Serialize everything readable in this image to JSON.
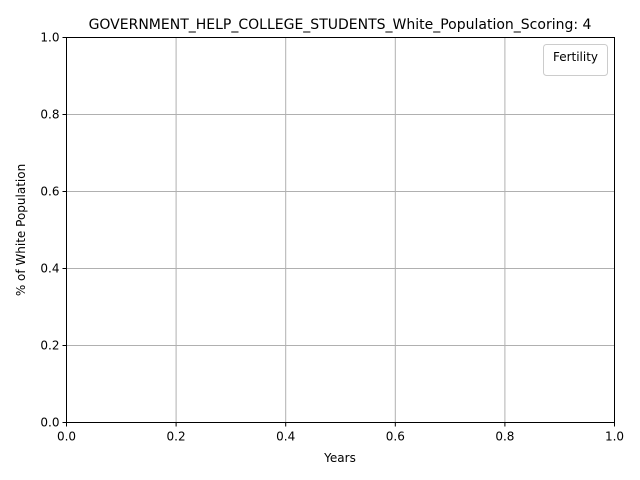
{
  "chart_data": {
    "type": "line",
    "title": "GOVERNMENT_HELP_COLLEGE_STUDENTS_White_Population_Scoring: 4",
    "xlabel": "Years",
    "ylabel": "% of White Population",
    "xlim": [
      0.0,
      1.0
    ],
    "ylim": [
      0.0,
      1.0
    ],
    "xticks": [
      "0.0",
      "0.2",
      "0.4",
      "0.6",
      "0.8",
      "1.0"
    ],
    "yticks": [
      "0.0",
      "0.2",
      "0.4",
      "0.6",
      "0.8",
      "1.0"
    ],
    "grid": true,
    "legend": {
      "title": "Fertility",
      "placement": "top-right",
      "entries": []
    },
    "series": []
  },
  "colors": {
    "grid": "#b0b0b0",
    "axis": "#000000",
    "legend_border": "#cccccc",
    "background": "#ffffff"
  }
}
